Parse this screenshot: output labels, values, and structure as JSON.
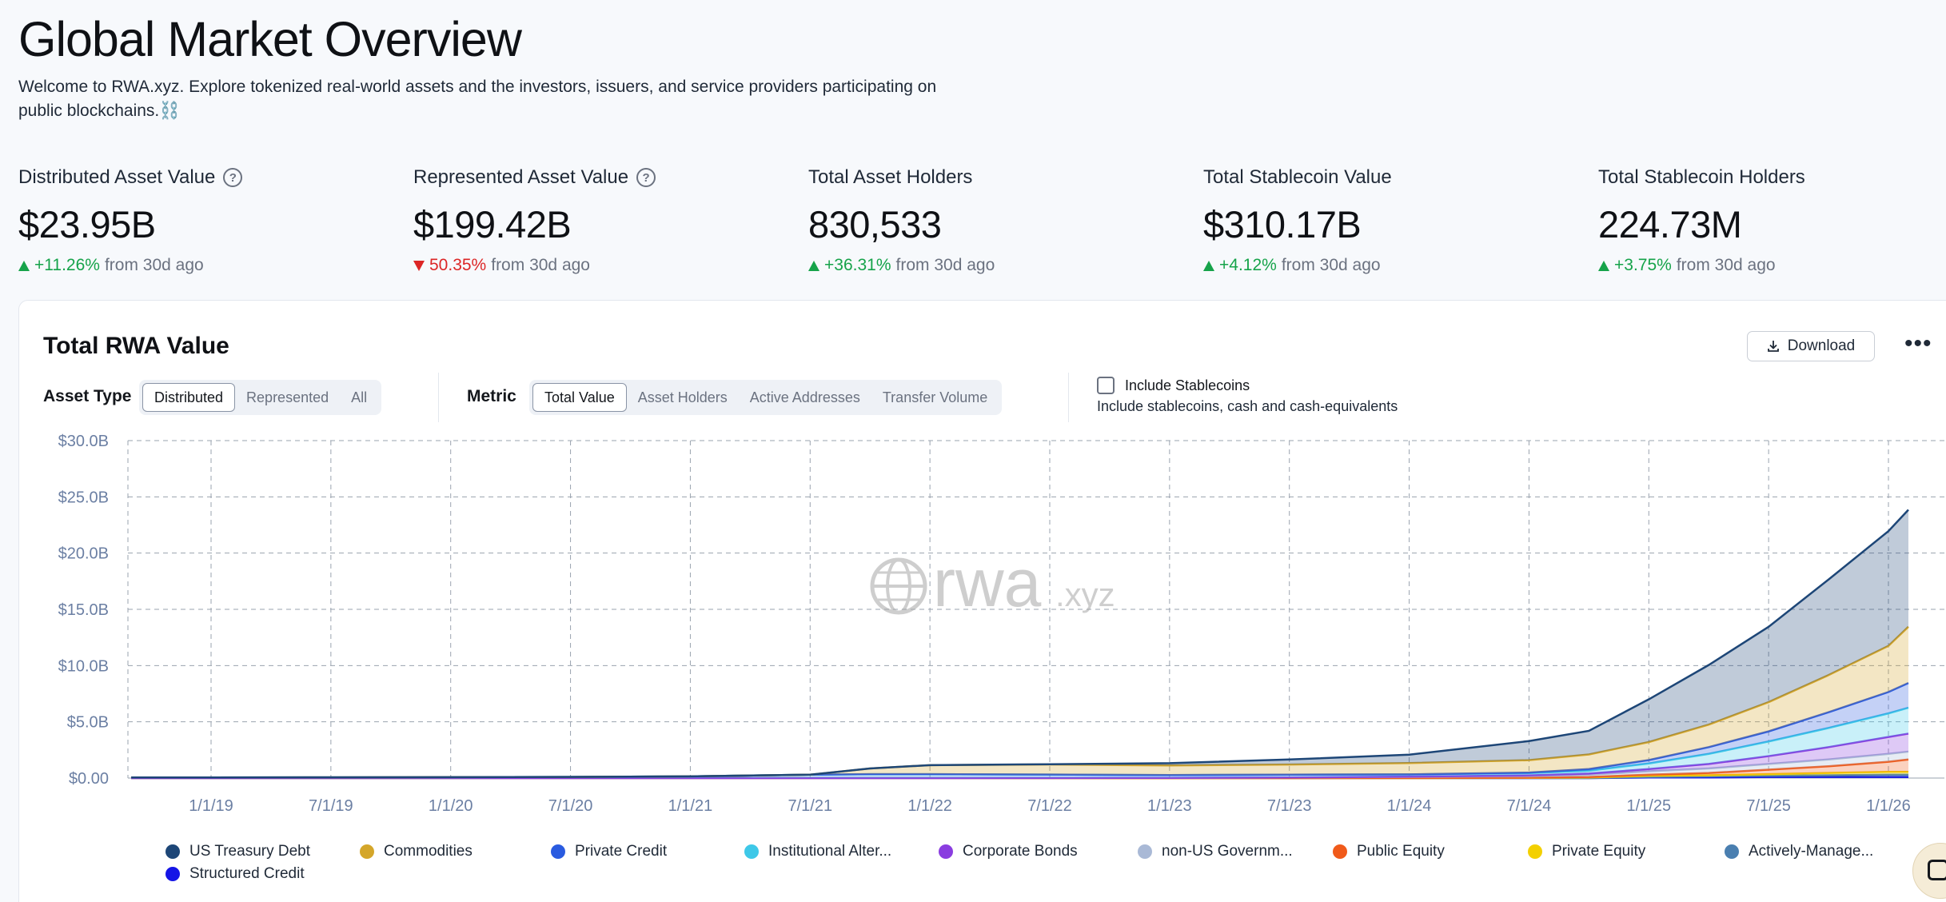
{
  "header": {
    "title": "Global Market Overview",
    "intro": "Welcome to RWA.xyz. Explore tokenized real-world assets and the investors, issuers, and service providers participating on public blockchains.⛓️"
  },
  "stats": [
    {
      "label": "Distributed Asset Value",
      "value": "$23.95B",
      "change": "+11.26%",
      "direction": "up",
      "suffix": "from 30d ago",
      "help": true
    },
    {
      "label": "Represented Asset Value",
      "value": "$199.42B",
      "change": "50.35%",
      "direction": "down",
      "suffix": "from 30d ago",
      "help": true
    },
    {
      "label": "Total Asset Holders",
      "value": "830,533",
      "change": "+36.31%",
      "direction": "up",
      "suffix": "from 30d ago",
      "help": false
    },
    {
      "label": "Total Stablecoin Value",
      "value": "$310.17B",
      "change": "+4.12%",
      "direction": "up",
      "suffix": "from 30d ago",
      "help": false
    },
    {
      "label": "Total Stablecoin Holders",
      "value": "224.73M",
      "change": "+3.75%",
      "direction": "up",
      "suffix": "from 30d ago",
      "help": false
    }
  ],
  "card": {
    "title": "Total RWA Value",
    "download_label": "Download",
    "more_label": "•••",
    "asset_type_label": "Asset Type",
    "asset_type_options": [
      "Distributed",
      "Represented",
      "All"
    ],
    "asset_type_selected": "Distributed",
    "metric_label": "Metric",
    "metric_options": [
      "Total Value",
      "Asset Holders",
      "Active Addresses",
      "Transfer Volume"
    ],
    "metric_selected": "Total Value",
    "include_stablecoins_label": "Include Stablecoins",
    "include_stablecoins_sub": "Include stablecoins, cash and cash-equivalents",
    "include_stablecoins_checked": false,
    "watermark_main": "rwa",
    "watermark_suffix": ".xyz"
  },
  "chart_data": {
    "type": "area",
    "stacked": true,
    "ylim": [
      0,
      30
    ],
    "y_ticks": [
      {
        "value": 0,
        "label": "$0.00"
      },
      {
        "value": 5,
        "label": "$5.0B"
      },
      {
        "value": 10,
        "label": "$10.0B"
      },
      {
        "value": 15,
        "label": "$15.0B"
      },
      {
        "value": 20,
        "label": "$20.0B"
      },
      {
        "value": 25,
        "label": "$25.0B"
      },
      {
        "value": 30,
        "label": "$30.0B"
      }
    ],
    "x_ticks": [
      "1/1/19",
      "7/1/19",
      "1/1/20",
      "7/1/20",
      "1/1/21",
      "7/1/21",
      "1/1/22",
      "7/1/22",
      "1/1/23",
      "7/1/23",
      "1/1/24",
      "7/1/24",
      "1/1/25",
      "7/1/25",
      "1/1/26"
    ],
    "grid": true,
    "legend_position": "bottom",
    "x": [
      "2018-09",
      "2019-01",
      "2019-07",
      "2020-01",
      "2020-07",
      "2021-01",
      "2021-07",
      "2021-10",
      "2022-01",
      "2022-07",
      "2023-01",
      "2023-07",
      "2024-01",
      "2024-07",
      "2024-10",
      "2025-01",
      "2025-04",
      "2025-07",
      "2025-10",
      "2026-01",
      "2026-02"
    ],
    "series": [
      {
        "name": "Structured Credit",
        "color": "#1515e6",
        "values": [
          0,
          0,
          0,
          0,
          0,
          0,
          0,
          0,
          0,
          0,
          0,
          0,
          0,
          0,
          0,
          0.05,
          0.05,
          0.1,
          0.1,
          0.1,
          0.1
        ]
      },
      {
        "name": "Actively-Manage...",
        "color": "#4a7fb0",
        "values": [
          0,
          0,
          0,
          0,
          0,
          0,
          0,
          0,
          0,
          0,
          0,
          0,
          0,
          0,
          0,
          0.05,
          0.1,
          0.1,
          0.15,
          0.2,
          0.2
        ]
      },
      {
        "name": "Private Equity",
        "color": "#f3d000",
        "values": [
          0,
          0,
          0,
          0,
          0,
          0,
          0,
          0,
          0,
          0,
          0,
          0,
          0,
          0.02,
          0.05,
          0.1,
          0.1,
          0.15,
          0.2,
          0.25,
          0.25
        ]
      },
      {
        "name": "Public Equity",
        "color": "#f05a1a",
        "values": [
          0,
          0,
          0,
          0,
          0,
          0,
          0,
          0,
          0,
          0,
          0,
          0,
          0.01,
          0.02,
          0.05,
          0.1,
          0.2,
          0.4,
          0.6,
          0.9,
          1.1
        ]
      },
      {
        "name": "non-US Governm...",
        "color": "#a9b9d6",
        "values": [
          0,
          0,
          0,
          0,
          0,
          0,
          0,
          0,
          0,
          0.01,
          0.02,
          0.05,
          0.1,
          0.15,
          0.2,
          0.3,
          0.4,
          0.5,
          0.6,
          0.7,
          0.7
        ]
      },
      {
        "name": "Corporate Bonds",
        "color": "#8a3de0",
        "values": [
          0,
          0,
          0,
          0,
          0,
          0,
          0,
          0,
          0,
          0,
          0,
          0,
          0.02,
          0.05,
          0.1,
          0.2,
          0.4,
          0.7,
          1.1,
          1.5,
          1.6
        ]
      },
      {
        "name": "Institutional Alter...",
        "color": "#3ec8e8",
        "values": [
          0.05,
          0.05,
          0.06,
          0.08,
          0.1,
          0.15,
          0.3,
          0.35,
          0.35,
          0.3,
          0.25,
          0.25,
          0.2,
          0.2,
          0.25,
          0.5,
          0.9,
          1.3,
          1.7,
          2.1,
          2.3
        ]
      },
      {
        "name": "Private Credit",
        "color": "#2a5be0",
        "values": [
          0,
          0,
          0,
          0,
          0,
          0,
          0,
          0,
          0,
          0,
          0,
          0,
          0,
          0.05,
          0.15,
          0.3,
          0.6,
          0.9,
          1.4,
          1.9,
          2.2
        ]
      },
      {
        "name": "Commodities",
        "color": "#d4a62a",
        "values": [
          0,
          0,
          0,
          0,
          0,
          0,
          0,
          0.5,
          0.8,
          0.9,
          0.85,
          0.9,
          1.0,
          1.1,
          1.3,
          1.6,
          2.0,
          2.6,
          3.3,
          4.1,
          5.0
        ]
      },
      {
        "name": "US Treasury Debt",
        "color": "#1d4677",
        "values": [
          0,
          0,
          0,
          0,
          0,
          0,
          0,
          0,
          0,
          0.02,
          0.2,
          0.45,
          0.75,
          1.7,
          2.1,
          3.8,
          5.3,
          6.7,
          8.5,
          10.2,
          10.4
        ]
      }
    ],
    "legend": [
      {
        "name": "US Treasury Debt",
        "color": "#1d4677"
      },
      {
        "name": "Commodities",
        "color": "#d4a62a"
      },
      {
        "name": "Private Credit",
        "color": "#2a5be0"
      },
      {
        "name": "Institutional Alter...",
        "color": "#3ec8e8"
      },
      {
        "name": "Corporate Bonds",
        "color": "#8a3de0"
      },
      {
        "name": "non-US Governm...",
        "color": "#a9b9d6"
      },
      {
        "name": "Public Equity",
        "color": "#f05a1a"
      },
      {
        "name": "Private Equity",
        "color": "#f3d000"
      },
      {
        "name": "Actively-Manage...",
        "color": "#4a7fb0"
      },
      {
        "name": "Structured Credit",
        "color": "#1515e6"
      }
    ]
  }
}
